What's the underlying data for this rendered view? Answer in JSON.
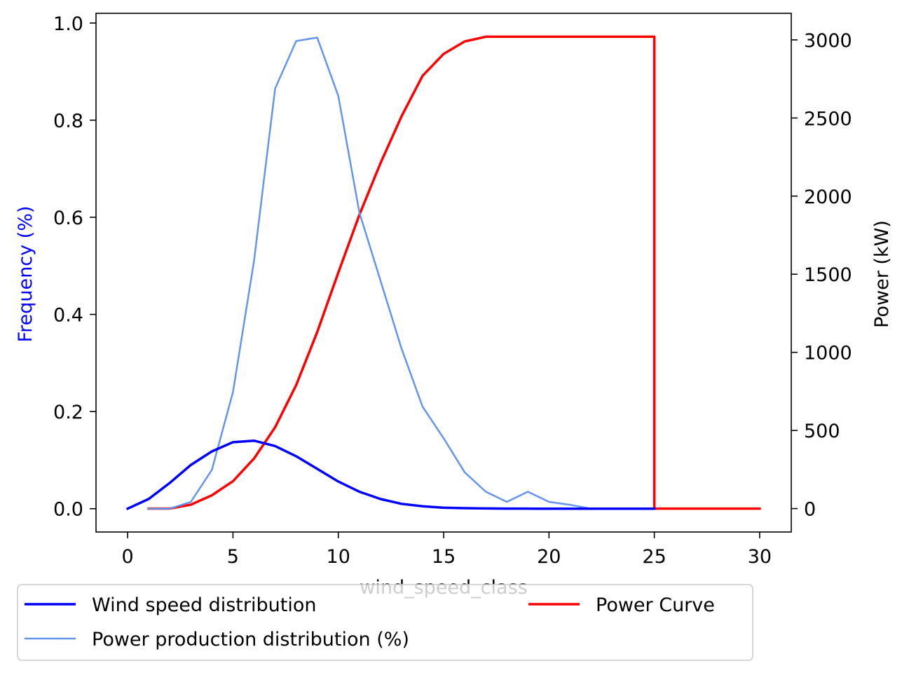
{
  "chart_data": {
    "type": "line",
    "xlabel": "wind_speed_class",
    "ylabel_left": "Frequency (%)",
    "ylabel_right": "Power (kW)",
    "xlim": [
      -1.5,
      31.5
    ],
    "ylim_left": [
      -0.048,
      1.02
    ],
    "ylim_right": [
      -150,
      3170
    ],
    "x_ticks": [
      0,
      5,
      10,
      15,
      20,
      25,
      30
    ],
    "y_left_ticks": [
      0.0,
      0.2,
      0.4,
      0.6,
      0.8,
      1.0
    ],
    "y_right_ticks": [
      0,
      500,
      1000,
      1500,
      2000,
      2500,
      3000
    ],
    "grid": false,
    "legend_position": "bottom-left, below axes",
    "series": [
      {
        "name": "Wind speed distribution",
        "axis": "left",
        "color": "#0000ff",
        "width": "thick",
        "x": [
          0,
          1,
          2,
          3,
          4,
          5,
          6,
          7,
          8,
          9,
          10,
          11,
          12,
          13,
          14,
          15,
          16,
          17,
          18,
          19,
          20,
          21,
          22,
          23,
          24,
          25
        ],
        "values": [
          0.0,
          0.02,
          0.053,
          0.09,
          0.118,
          0.137,
          0.14,
          0.129,
          0.108,
          0.082,
          0.056,
          0.035,
          0.02,
          0.01,
          0.005,
          0.002,
          0.001,
          0.0005,
          0.0002,
          0.0001,
          0.0,
          0.0,
          0.0,
          0.0,
          0.0,
          0.0
        ]
      },
      {
        "name": "Power production distribution (%)",
        "axis": "left",
        "color": "#6495ed",
        "width": "thin",
        "x": [
          1,
          2,
          3,
          4,
          5,
          6,
          7,
          8,
          9,
          10,
          11,
          12,
          13,
          14,
          15,
          16,
          17,
          18,
          19,
          20,
          21,
          22,
          23,
          24,
          25
        ],
        "values": [
          0.0,
          0.0,
          0.014,
          0.08,
          0.24,
          0.51,
          0.865,
          0.963,
          0.97,
          0.85,
          0.61,
          0.47,
          0.33,
          0.21,
          0.145,
          0.075,
          0.035,
          0.014,
          0.035,
          0.014,
          0.008,
          0.0,
          0.0,
          0.0,
          0.0
        ]
      },
      {
        "name": "Power Curve",
        "axis": "right",
        "color": "#ff0000",
        "width": "thick",
        "x": [
          1,
          2,
          3,
          4,
          5,
          6,
          7,
          8,
          9,
          10,
          11,
          12,
          13,
          14,
          15,
          16,
          17,
          18,
          19,
          20,
          21,
          22,
          23,
          24,
          25,
          25,
          26,
          27,
          28,
          29,
          30
        ],
        "values": [
          0,
          0,
          25,
          85,
          175,
          320,
          520,
          790,
          1130,
          1510,
          1880,
          2210,
          2510,
          2770,
          2910,
          2990,
          3020,
          3020,
          3020,
          3020,
          3020,
          3020,
          3020,
          3020,
          3020,
          0,
          0,
          0,
          0,
          0,
          0
        ]
      }
    ],
    "legend": {
      "entries": [
        {
          "label": "Wind speed distribution",
          "color": "#0000ff"
        },
        {
          "label": "Power production distribution (%)",
          "color": "#6495ed"
        },
        {
          "label": "Power Curve",
          "color": "#ff0000"
        }
      ]
    }
  }
}
